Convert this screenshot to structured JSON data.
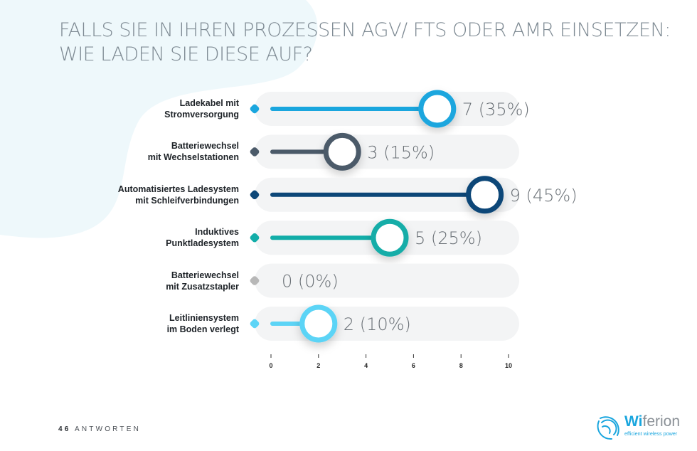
{
  "header": {
    "title_line1": "FALLS SIE IN IHREN PROZESSEN AGV/ FTS ODER AMR EINSETZEN:",
    "title_line2": "WIE LADEN SIE DIESE AUF?"
  },
  "footer": {
    "count": "46",
    "count_label": "ANTWORTEN"
  },
  "logo": {
    "brand_prefix": "Wi",
    "brand_suffix": "ferion",
    "tagline": "efficient wireless power"
  },
  "colors": {
    "background_blob": "#eef8fb",
    "track": "#f3f4f5",
    "value_text": "#6a7076",
    "title_text": "#7e8a93"
  },
  "chart_data": {
    "type": "bar",
    "title": "FALLS SIE IN IHREN PROZESSEN AGV/ FTS ODER AMR EINSETZEN: WIE LADEN SIE DIESE AUF?",
    "xlabel": "",
    "ylabel": "",
    "xlim": [
      0,
      10
    ],
    "x_ticks": [
      "0",
      "2",
      "4",
      "6",
      "8",
      "10"
    ],
    "grid": false,
    "orientation": "horizontal",
    "categories": [
      {
        "line1": "Ladekabel mit",
        "line2": "Stromversorgung"
      },
      {
        "line1": "Batteriewechsel",
        "line2": "mit Wechselstationen"
      },
      {
        "line1": "Automatisiertes Ladesystem",
        "line2": "mit Schleifverbindungen"
      },
      {
        "line1": "Induktives",
        "line2": "Punktladesystem"
      },
      {
        "line1": "Batteriewechsel",
        "line2": "mit Zusatzstapler"
      },
      {
        "line1": "Leitliniensystem",
        "line2": "im Boden verlegt"
      }
    ],
    "values": [
      7,
      3,
      9,
      5,
      0,
      2
    ],
    "percents": [
      35,
      15,
      45,
      25,
      0,
      10
    ],
    "value_labels": [
      "7 (35%)",
      "3 (15%)",
      "9 (45%)",
      "5 (25%)",
      "0 (0%)",
      "2 (10%)"
    ],
    "series_colors": [
      "#1aa6de",
      "#4b5a69",
      "#0d4778",
      "#12ada8",
      "#b7b7b7",
      "#5cd4f6"
    ]
  }
}
